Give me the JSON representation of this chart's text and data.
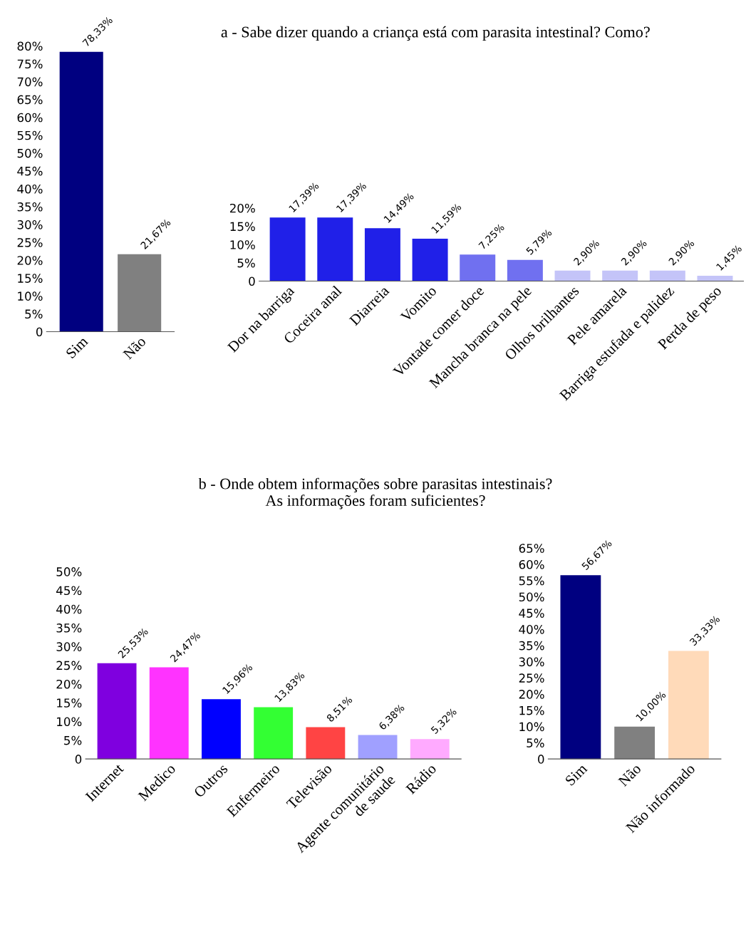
{
  "chart_data": [
    {
      "type": "bar",
      "categories": [
        "Sim",
        "Não"
      ],
      "values": [
        78.33,
        21.67
      ],
      "colors": [
        "#000080",
        "#808080"
      ],
      "value_labels": [
        "78,33%",
        "21,67%"
      ],
      "ylim": [
        0,
        80
      ],
      "yticks": [
        0,
        {
          "value": 5,
          "label": "5%"
        },
        {
          "value": 10,
          "label": "10%"
        },
        {
          "value": 15,
          "label": "15%"
        },
        {
          "value": 20,
          "label": "20%"
        },
        {
          "value": 25,
          "label": "25%"
        },
        {
          "value": 30,
          "label": "30%"
        },
        {
          "value": 35,
          "label": "35%"
        },
        {
          "value": 40,
          "label": "40%"
        },
        {
          "value": 45,
          "label": "45%"
        },
        {
          "value": 50,
          "label": "50%"
        },
        {
          "value": 55,
          "label": "55%"
        },
        {
          "value": 60,
          "label": "60%"
        },
        {
          "value": 65,
          "label": "65%"
        },
        {
          "value": 70,
          "label": "70%"
        },
        {
          "value": 75,
          "label": "75%"
        },
        {
          "value": 80,
          "label": "80%"
        }
      ],
      "grid": false,
      "legend": false
    },
    {
      "type": "bar",
      "title": "a - Sabe dizer quando a criança está com parasita intestinal? Como?",
      "categories": [
        "Dor na barriga",
        "Coceira anal",
        "Diarreia",
        "Vomito",
        "Vontade comer doce",
        "Mancha branca na pele",
        "Olhos brilhantes",
        "Pele amarela",
        "Barriga estufada e palidez",
        "Perda de peso"
      ],
      "values": [
        17.39,
        17.39,
        14.49,
        11.59,
        7.25,
        5.79,
        2.9,
        2.9,
        2.9,
        1.45
      ],
      "colors": [
        "#2020e8",
        "#2020e8",
        "#2020e8",
        "#2020e8",
        "#7070f0",
        "#7070f0",
        "#c4c4f8",
        "#c4c4f8",
        "#c4c4f8",
        "#c4c4f8"
      ],
      "value_labels": [
        "17,39%",
        "17,39%",
        "14,49%",
        "11,59%",
        "7,25%",
        "5,79%",
        "2,90%",
        "2,90%",
        "2,90%",
        "1,45%"
      ],
      "ylim": [
        0,
        20
      ],
      "yticks": [
        0,
        {
          "value": 5,
          "label": "5%"
        },
        {
          "value": 10,
          "label": "10%"
        },
        {
          "value": 15,
          "label": "15%"
        },
        {
          "value": 20,
          "label": "20%"
        }
      ],
      "grid": false,
      "legend": false
    },
    {
      "type": "bar",
      "title": "b - Onde obtem informações sobre parasitas intestinais?\nAs informações foram suficientes?",
      "categories": [
        "Internet",
        "Medico",
        "Outros",
        "Enfermeiro",
        "Televisão",
        "Agente comunitário\nde saude",
        "Rádio"
      ],
      "values": [
        25.53,
        24.47,
        15.96,
        13.83,
        8.51,
        6.38,
        5.32
      ],
      "colors": [
        "#7f00df",
        "#ff33ff",
        "#0000ff",
        "#33ff33",
        "#ff4444",
        "#a0a0ff",
        "#ffaaff"
      ],
      "value_labels": [
        "25,53%",
        "24,47%",
        "15,96%",
        "13,83%",
        "8,51%",
        "6,38%",
        "5,32%"
      ],
      "ylim": [
        0,
        50
      ],
      "yticks": [
        0,
        {
          "value": 5,
          "label": "5%"
        },
        {
          "value": 10,
          "label": "10%"
        },
        {
          "value": 15,
          "label": "15%"
        },
        {
          "value": 20,
          "label": "20%"
        },
        {
          "value": 25,
          "label": "25%"
        },
        {
          "value": 30,
          "label": "30%"
        },
        {
          "value": 35,
          "label": "35%"
        },
        {
          "value": 40,
          "label": "40%"
        },
        {
          "value": 45,
          "label": "45%"
        },
        {
          "value": 50,
          "label": "50%"
        }
      ],
      "grid": false,
      "legend": false
    },
    {
      "type": "bar",
      "categories": [
        "Sim",
        "Não",
        "Não informado"
      ],
      "values": [
        56.67,
        10.0,
        33.33
      ],
      "colors": [
        "#000080",
        "#808080",
        "#ffdab9"
      ],
      "value_labels": [
        "56,67%",
        "10,00%",
        "33,33%"
      ],
      "ylim": [
        0,
        65
      ],
      "yticks": [
        0,
        {
          "value": 5,
          "label": "5%"
        },
        {
          "value": 10,
          "label": "10%"
        },
        {
          "value": 15,
          "label": "15%"
        },
        {
          "value": 20,
          "label": "20%"
        },
        {
          "value": 25,
          "label": "25%"
        },
        {
          "value": 30,
          "label": "30%"
        },
        {
          "value": 35,
          "label": "35%"
        },
        {
          "value": 40,
          "label": "40%"
        },
        {
          "value": 45,
          "label": "45%"
        },
        {
          "value": 50,
          "label": "50%"
        },
        {
          "value": 55,
          "label": "55%"
        },
        {
          "value": 60,
          "label": "60%"
        },
        {
          "value": 65,
          "label": "65%"
        }
      ],
      "grid": false,
      "legend": false
    }
  ]
}
